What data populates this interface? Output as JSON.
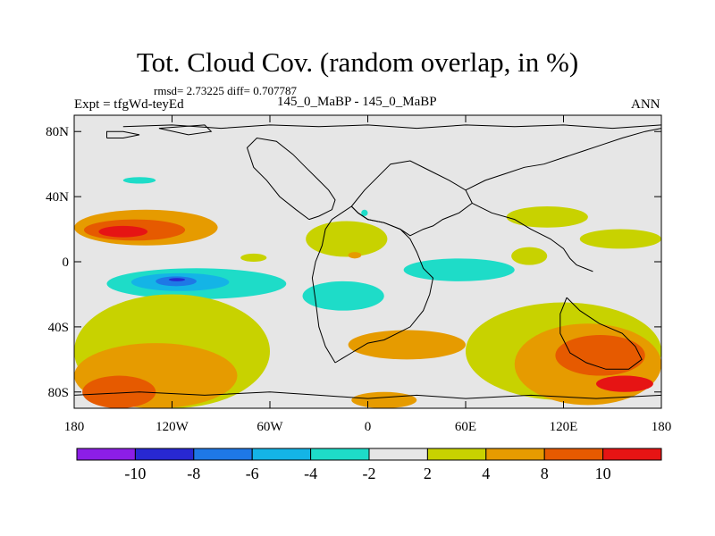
{
  "header": {
    "title": "Tot. Cloud Cov. (random overlap, in %)",
    "stats": "rmsd= 2.73225 diff= 0.707787",
    "experiment": "Expt = tfgWd-teyEd",
    "comparison": "145_0_MaBP - 145_0_MaBP",
    "season": "ANN"
  },
  "chart_data": {
    "type": "heatmap",
    "title": "Tot. Cloud Cov. (random overlap, in %)",
    "xlabel": "",
    "ylabel": "",
    "xlim": [
      -180,
      180
    ],
    "ylim": [
      -90,
      90
    ],
    "x_ticks": [
      {
        "value": -180,
        "label": "180"
      },
      {
        "value": -120,
        "label": "120W"
      },
      {
        "value": -60,
        "label": "60W"
      },
      {
        "value": 0,
        "label": "0"
      },
      {
        "value": 60,
        "label": "60E"
      },
      {
        "value": 120,
        "label": "120E"
      },
      {
        "value": 180,
        "label": "180"
      }
    ],
    "y_ticks": [
      {
        "value": 80,
        "label": "80N"
      },
      {
        "value": 40,
        "label": "40N"
      },
      {
        "value": 0,
        "label": "0"
      },
      {
        "value": -40,
        "label": "40S"
      },
      {
        "value": -80,
        "label": "80S"
      }
    ],
    "levels": [
      "-10",
      "-8",
      "-6",
      "-4",
      "-2",
      "2",
      "4",
      "8",
      "10"
    ],
    "colors": [
      "#8c1ee6",
      "#2828d2",
      "#1e78e6",
      "#14b4e6",
      "#1edcc8",
      "#e6e6e6",
      "#c8d200",
      "#e69b00",
      "#e65a00",
      "#e61414"
    ],
    "regions": [
      {
        "bin": 7,
        "lon": [
          -180,
          -92
        ],
        "lat": [
          10,
          32
        ]
      },
      {
        "bin": 8,
        "lon": [
          -174,
          -112
        ],
        "lat": [
          13,
          26
        ]
      },
      {
        "bin": 9,
        "lon": [
          -165,
          -135
        ],
        "lat": [
          15,
          22
        ]
      },
      {
        "bin": 6,
        "lon": [
          -78,
          -62
        ],
        "lat": [
          0,
          5
        ]
      },
      {
        "bin": 4,
        "lon": [
          -160,
          -50
        ],
        "lat": [
          -23,
          -4
        ]
      },
      {
        "bin": 3,
        "lon": [
          -145,
          -85
        ],
        "lat": [
          -18,
          -7
        ]
      },
      {
        "bin": 2,
        "lon": [
          -130,
          -105
        ],
        "lat": [
          -15,
          -9
        ]
      },
      {
        "bin": 1,
        "lon": [
          -122,
          -112
        ],
        "lat": [
          -12,
          -10
        ]
      },
      {
        "bin": 4,
        "lon": [
          -40,
          10
        ],
        "lat": [
          -30,
          -12
        ]
      },
      {
        "bin": 4,
        "lon": [
          -150,
          -130
        ],
        "lat": [
          48,
          52
        ]
      },
      {
        "bin": 4,
        "lon": [
          -4,
          0
        ],
        "lat": [
          28,
          32
        ]
      },
      {
        "bin": 6,
        "lon": [
          -38,
          12
        ],
        "lat": [
          3,
          25
        ]
      },
      {
        "bin": 7,
        "lon": [
          -12,
          -4
        ],
        "lat": [
          2,
          6
        ]
      },
      {
        "bin": 4,
        "lon": [
          22,
          90
        ],
        "lat": [
          -12,
          2
        ]
      },
      {
        "bin": 6,
        "lon": [
          85,
          135
        ],
        "lat": [
          21,
          34
        ]
      },
      {
        "bin": 6,
        "lon": [
          130,
          180
        ],
        "lat": [
          8,
          20
        ]
      },
      {
        "bin": 6,
        "lon": [
          88,
          110
        ],
        "lat": [
          -2,
          9
        ]
      },
      {
        "bin": 6,
        "lon": [
          -180,
          -60
        ],
        "lat": [
          -90,
          -20
        ]
      },
      {
        "bin": 7,
        "lon": [
          -180,
          -80
        ],
        "lat": [
          -90,
          -50
        ]
      },
      {
        "bin": 8,
        "lon": [
          -175,
          -130
        ],
        "lat": [
          -90,
          -70
        ]
      },
      {
        "bin": 7,
        "lon": [
          -12,
          60
        ],
        "lat": [
          -60,
          -42
        ]
      },
      {
        "bin": 6,
        "lon": [
          60,
          180
        ],
        "lat": [
          -85,
          -25
        ]
      },
      {
        "bin": 7,
        "lon": [
          90,
          180
        ],
        "lat": [
          -88,
          -38
        ]
      },
      {
        "bin": 8,
        "lon": [
          115,
          170
        ],
        "lat": [
          -70,
          -45
        ]
      },
      {
        "bin": 9,
        "lon": [
          140,
          175
        ],
        "lat": [
          -80,
          -70
        ]
      },
      {
        "bin": 7,
        "lon": [
          -10,
          30
        ],
        "lat": [
          -90,
          -80
        ]
      }
    ]
  }
}
